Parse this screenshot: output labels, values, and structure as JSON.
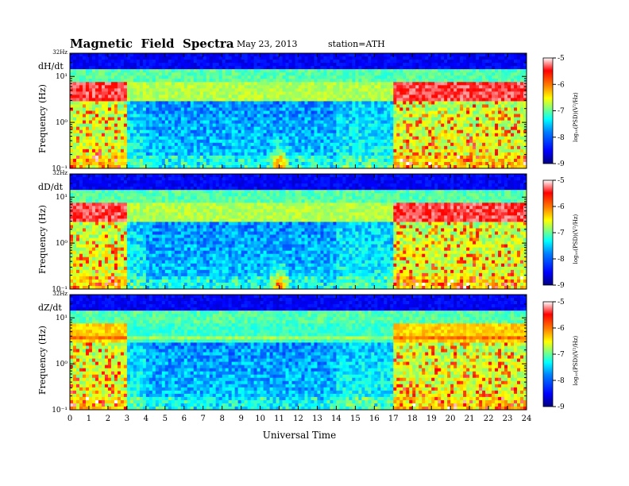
{
  "header": {
    "title": "Magnetic  Field  Spectra",
    "date": "May 23, 2013",
    "station": "station=ATH"
  },
  "colorbar": {
    "label": "log₁₀(PSD)(V²/Hz)",
    "ticks": [
      "-5",
      "-6",
      "-7",
      "-8",
      "-9"
    ],
    "range": [
      -9,
      -5
    ],
    "colormap": [
      "#00007f",
      "#0000ff",
      "#007fff",
      "#00ffff",
      "#7fff7f",
      "#ffff00",
      "#ff7f00",
      "#ff0000",
      "#ffffff"
    ]
  },
  "chart_data": [
    {
      "type": "heatmap",
      "component": "dH/dt",
      "ylabel": "Frequency (Hz)",
      "top_label": "32Hz",
      "yticks": [
        "10¹",
        "10⁰",
        "10⁻¹"
      ],
      "yscale": "log",
      "xlim": [
        0,
        24
      ],
      "ylim_hz": [
        0.1,
        32
      ],
      "event_peak": {
        "hour": 11,
        "freq_hz": 0.2
      }
    },
    {
      "type": "heatmap",
      "component": "dD/dt",
      "ylabel": "Frequency (Hz)",
      "top_label": "32Hz",
      "yticks": [
        "10¹",
        "10⁰",
        "10⁻¹"
      ],
      "yscale": "log",
      "xlim": [
        0,
        24
      ],
      "ylim_hz": [
        0.1,
        32
      ],
      "event_peak": {
        "hour": 11,
        "freq_hz": 0.2
      }
    },
    {
      "type": "heatmap",
      "component": "dZ/dt",
      "ylabel": "Frequency (Hz)",
      "top_label": "32Hz",
      "yticks": [
        "10¹",
        "10⁰",
        "10⁻¹"
      ],
      "yscale": "log",
      "xlim": [
        0,
        24
      ],
      "ylim_hz": [
        0.1,
        32
      ]
    }
  ],
  "xaxis": {
    "label": "Universal Time",
    "ticks": [
      "0",
      "1",
      "2",
      "3",
      "4",
      "5",
      "6",
      "7",
      "8",
      "9",
      "10",
      "11",
      "12",
      "13",
      "14",
      "15",
      "16",
      "17",
      "18",
      "19",
      "20",
      "21",
      "22",
      "23",
      "24"
    ]
  }
}
